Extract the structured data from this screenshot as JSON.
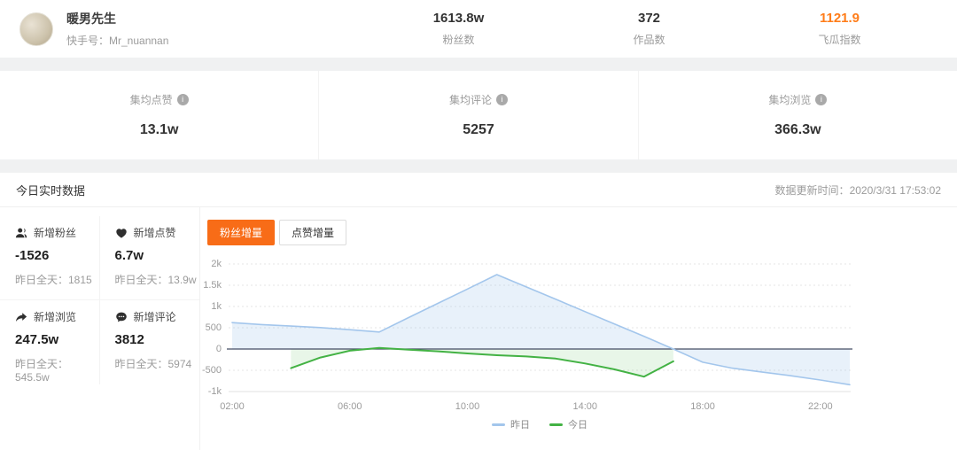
{
  "colors": {
    "accent": "#ff7d1a",
    "tab_active": "#f86c17"
  },
  "icons": {
    "info": "i"
  },
  "profile": {
    "name": "暖男先生",
    "account_label": "快手号：",
    "account_id": "Mr_nuannan"
  },
  "header_stats": [
    {
      "value": "1613.8w",
      "label": "粉丝数"
    },
    {
      "value": "372",
      "label": "作品数"
    },
    {
      "value": "1121.9",
      "label": "飞瓜指数"
    }
  ],
  "avg_stats": [
    {
      "label": "集均点赞",
      "value": "13.1w"
    },
    {
      "label": "集均评论",
      "value": "5257"
    },
    {
      "label": "集均浏览",
      "value": "366.3w"
    }
  ],
  "realtime": {
    "title": "今日实时数据",
    "update_time_label": "数据更新时间：",
    "update_time": "2020/3/31 17:53:02",
    "stats": [
      {
        "icon": "user-icon",
        "label": "新增粉丝",
        "value": "-1526",
        "yesterday": "昨日全天：1815"
      },
      {
        "icon": "heart-icon",
        "label": "新增点赞",
        "value": "6.7w",
        "yesterday": "昨日全天：13.9w"
      },
      {
        "icon": "share-icon",
        "label": "新增浏览",
        "value": "247.5w",
        "yesterday": "昨日全天：545.5w"
      },
      {
        "icon": "comment-icon",
        "label": "新增评论",
        "value": "3812",
        "yesterday": "昨日全天：5974"
      }
    ],
    "tabs": [
      {
        "label": "粉丝增量",
        "active": true
      },
      {
        "label": "点赞增量",
        "active": false
      }
    ]
  },
  "chart_data": {
    "type": "line",
    "title": "粉丝增量",
    "xlabel": "",
    "ylabel": "",
    "xlim_hours": [
      2,
      23
    ],
    "ylim": [
      -1000,
      2000
    ],
    "grid": "horizontal-dashed",
    "legend_position": "bottom",
    "x_ticks": [
      "02:00",
      "06:00",
      "10:00",
      "14:00",
      "18:00",
      "22:00"
    ],
    "x_tick_hours": [
      2,
      6,
      10,
      14,
      18,
      22
    ],
    "y_ticks": [
      "2k",
      "1.5k",
      "1k",
      "500",
      "0",
      "-500",
      "-1k"
    ],
    "y_tick_values": [
      2000,
      1500,
      1000,
      500,
      0,
      -500,
      -1000
    ],
    "series": [
      {
        "name": "昨日",
        "color": "#a3c6ec",
        "fill": "rgba(163,198,236,0.25)",
        "width": 1.6,
        "points": [
          [
            2,
            620
          ],
          [
            3,
            575
          ],
          [
            4,
            540
          ],
          [
            5,
            505
          ],
          [
            6,
            455
          ],
          [
            7,
            400
          ],
          [
            8,
            740
          ],
          [
            9,
            1075
          ],
          [
            10,
            1410
          ],
          [
            11,
            1750
          ],
          [
            12,
            1460
          ],
          [
            13,
            1170
          ],
          [
            14,
            880
          ],
          [
            15,
            590
          ],
          [
            16,
            300
          ],
          [
            17,
            0
          ],
          [
            18,
            -310
          ],
          [
            19,
            -450
          ],
          [
            20,
            -540
          ],
          [
            21,
            -630
          ],
          [
            22,
            -730
          ],
          [
            23,
            -840
          ]
        ]
      },
      {
        "name": "今日",
        "color": "#43b244",
        "fill": "rgba(67,178,68,0.12)",
        "width": 2,
        "points": [
          [
            4,
            -450
          ],
          [
            5,
            -200
          ],
          [
            6,
            -40
          ],
          [
            7,
            25
          ],
          [
            8,
            -15
          ],
          [
            9,
            -55
          ],
          [
            10,
            -105
          ],
          [
            11,
            -145
          ],
          [
            12,
            -175
          ],
          [
            13,
            -225
          ],
          [
            14,
            -340
          ],
          [
            15,
            -480
          ],
          [
            16,
            -650
          ],
          [
            17,
            -290
          ]
        ]
      }
    ]
  }
}
